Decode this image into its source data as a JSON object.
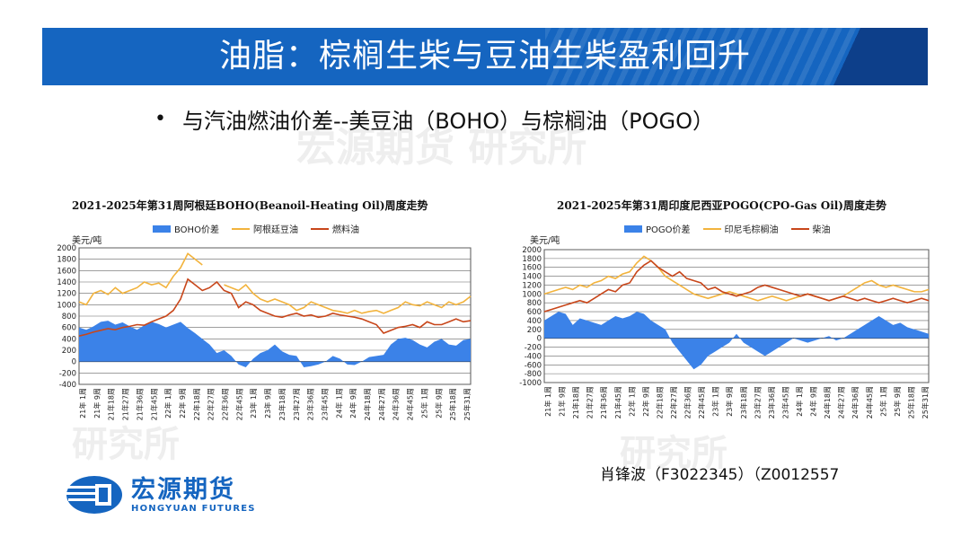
{
  "slide": {
    "title": "油脂：棕榈生柴与豆油生柴盈利回升",
    "bullet": "与汽油燃油价差--美豆油（BOHO）与棕榈油（POGO）",
    "watermark": "宏源期货 研究所",
    "author": "肖锋波（F3022345）（Z0012557"
  },
  "logo": {
    "cn": "宏源期货",
    "en": "HONGYUAN FUTURES"
  },
  "colors": {
    "banner": "#1565c0",
    "spread_fill": "#3b82e8",
    "oil_line": "#f2b33d",
    "fuel_line": "#c8461a"
  },
  "chart_data": [
    {
      "type": "area",
      "title": "2021-2025年第31周阿根廷BOHO(Beanoil-Heating Oil)周度走势",
      "ylabel": "美元/吨",
      "ylim": [
        -400,
        2000
      ],
      "yticks": [
        -400,
        -200,
        0,
        200,
        400,
        600,
        800,
        1000,
        1200,
        1400,
        1600,
        1800,
        2000
      ],
      "xticks": [
        "21年 1周",
        "21年 9周",
        "21年18周",
        "21年27周",
        "21年36周",
        "21年45周",
        "22年 1周",
        "22年 9周",
        "22年18周",
        "22年27周",
        "22年36周",
        "22年45周",
        "23年 1周",
        "23年 9周",
        "23年18周",
        "23年27周",
        "23年36周",
        "23年45周",
        "24年 1周",
        "24年 9周",
        "24年18周",
        "24年27周",
        "24年36周",
        "24年45周",
        "25年 1周",
        "25年 9周",
        "25年18周",
        "25年31周"
      ],
      "series": [
        {
          "name": "BOHO价差",
          "kind": "area",
          "values": [
            600,
            560,
            620,
            700,
            720,
            650,
            690,
            620,
            560,
            640,
            700,
            660,
            600,
            650,
            700,
            590,
            500,
            400,
            300,
            150,
            200,
            100,
            -50,
            -100,
            50,
            150,
            200,
            300,
            180,
            120,
            100,
            -100,
            -80,
            -50,
            0,
            100,
            50,
            -50,
            -60,
            0,
            80,
            100,
            120,
            300,
            400,
            420,
            380,
            300,
            250,
            350,
            400,
            300,
            280,
            380,
            400
          ]
        },
        {
          "name": "阿根廷豆油",
          "kind": "line",
          "values": [
            1050,
            1000,
            1200,
            1250,
            1180,
            1300,
            1200,
            1250,
            1300,
            1400,
            1350,
            1380,
            1300,
            1500,
            1650,
            1900,
            1800,
            1700,
            null,
            null,
            1350,
            1300,
            1250,
            1350,
            1200,
            1100,
            1050,
            1100,
            1050,
            1000,
            900,
            950,
            1050,
            1000,
            950,
            900,
            880,
            850,
            900,
            850,
            880,
            900,
            850,
            900,
            950,
            1050,
            1000,
            980,
            1050,
            1000,
            950,
            1050,
            1000,
            1050,
            1150
          ]
        },
        {
          "name": "燃料油",
          "kind": "line",
          "values": [
            450,
            480,
            520,
            550,
            580,
            560,
            600,
            620,
            650,
            640,
            700,
            750,
            800,
            900,
            1100,
            1450,
            1350,
            1250,
            1300,
            1400,
            1250,
            1200,
            950,
            1050,
            1000,
            900,
            850,
            800,
            780,
            820,
            850,
            800,
            820,
            780,
            800,
            850,
            820,
            800,
            780,
            750,
            700,
            650,
            500,
            550,
            600,
            620,
            650,
            600,
            700,
            650,
            650,
            700,
            750,
            700,
            720
          ]
        }
      ]
    },
    {
      "type": "area",
      "title": "2021-2025年第31周印度尼西亚POGO(CPO-Gas Oil)周度走势",
      "ylabel": "美元/吨",
      "ylim": [
        -1000,
        2000
      ],
      "yticks": [
        -1000,
        -800,
        -600,
        -400,
        -200,
        0,
        200,
        400,
        600,
        800,
        1000,
        1200,
        1400,
        1600,
        1800,
        2000
      ],
      "xticks": [
        "21年 1周",
        "21年 9周",
        "21年18周",
        "21年27周",
        "21年36周",
        "21年45周",
        "22年 1周",
        "22年 9周",
        "22年18周",
        "22年27周",
        "22年36周",
        "22年45周",
        "23年 1周",
        "23年 9周",
        "23年18周",
        "23年27周",
        "23年36周",
        "23年45周",
        "24年 1周",
        "24年 9周",
        "24年18周",
        "24年27周",
        "24年36周",
        "24年45周",
        "25年 1周",
        "25年 9周",
        "25年18周",
        "25年31周"
      ],
      "series": [
        {
          "name": "POGO价差",
          "kind": "area",
          "values": [
            400,
            500,
            600,
            550,
            300,
            450,
            400,
            350,
            300,
            400,
            500,
            450,
            500,
            600,
            550,
            400,
            300,
            200,
            -100,
            -300,
            -500,
            -700,
            -600,
            -400,
            -300,
            -200,
            -100,
            100,
            -100,
            -200,
            -300,
            -400,
            -300,
            -200,
            -100,
            0,
            -50,
            -100,
            -50,
            0,
            50,
            -50,
            0,
            100,
            200,
            300,
            400,
            500,
            400,
            300,
            350,
            250,
            200,
            150,
            100
          ]
        },
        {
          "name": "印尼毛棕榈油",
          "kind": "line",
          "values": [
            1000,
            1050,
            1100,
            1150,
            1100,
            1200,
            1150,
            1250,
            1300,
            1400,
            1350,
            1450,
            1500,
            1700,
            1850,
            1750,
            1600,
            1400,
            1300,
            1200,
            1100,
            1000,
            950,
            900,
            950,
            1000,
            1050,
            1000,
            950,
            900,
            850,
            900,
            950,
            900,
            850,
            900,
            950,
            1000,
            950,
            900,
            850,
            900,
            950,
            1050,
            1150,
            1250,
            1300,
            1200,
            1150,
            1200,
            1150,
            1100,
            1050,
            1050,
            1100
          ]
        },
        {
          "name": "柴油",
          "kind": "line",
          "values": [
            600,
            650,
            700,
            750,
            800,
            850,
            800,
            900,
            1000,
            1100,
            1050,
            1200,
            1250,
            1500,
            1650,
            1750,
            1600,
            1500,
            1400,
            1500,
            1350,
            1300,
            1250,
            1100,
            1150,
            1050,
            1000,
            950,
            1000,
            1050,
            1150,
            1200,
            1150,
            1100,
            1050,
            1000,
            950,
            1000,
            950,
            900,
            850,
            900,
            950,
            900,
            850,
            900,
            850,
            800,
            850,
            900,
            850,
            800,
            850,
            900,
            850
          ]
        }
      ]
    }
  ]
}
